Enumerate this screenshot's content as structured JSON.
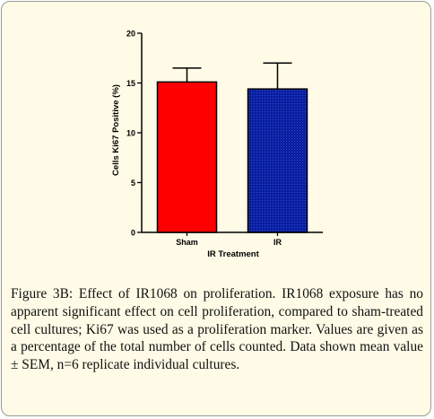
{
  "chart_data": {
    "type": "bar",
    "categories": [
      "Sham",
      "IR"
    ],
    "values": [
      15.1,
      14.4
    ],
    "errors": [
      1.4,
      2.6
    ],
    "xlabel": "IR Treatment",
    "ylabel": "Cells Ki67 Positive (%)",
    "ylim": [
      0,
      20
    ],
    "yticks": [
      0,
      5,
      10,
      15,
      20
    ],
    "bar_fills": [
      "solid",
      "dotted"
    ],
    "colors": [
      "#ff0000",
      "#0a1f9e"
    ],
    "grid": false
  },
  "caption": {
    "label": "Figure 3B:",
    "text": " Effect of IR1068 on proliferation. IR1068 exposure has no apparent significant effect on cell proliferation, compared to sham-treated cell cultures; Ki67 was used as a proliferation marker. Values are given as a percentage of the total number of cells counted. Data shown mean value ± SEM, n=6 replicate individual cultures."
  }
}
